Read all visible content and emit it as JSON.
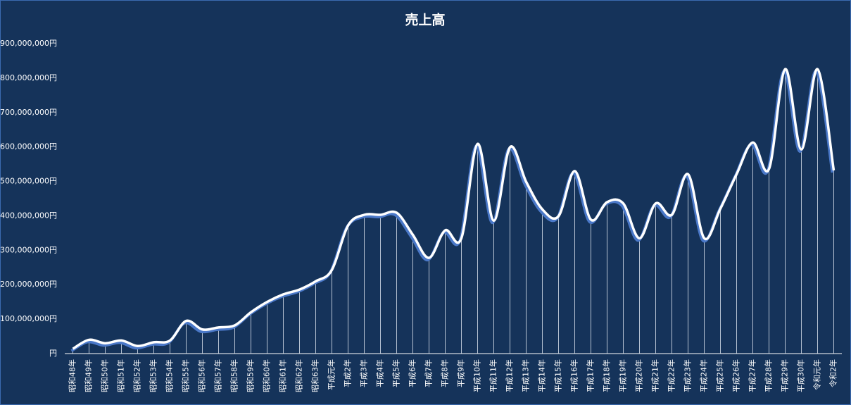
{
  "chart_data": {
    "type": "line",
    "title": "売上高",
    "categories": [
      "昭和48年",
      "昭和49年",
      "昭和50年",
      "昭和51年",
      "昭和52年",
      "昭和53年",
      "昭和54年",
      "昭和55年",
      "昭和56年",
      "昭和57年",
      "昭和58年",
      "昭和59年",
      "昭和60年",
      "昭和61年",
      "昭和62年",
      "昭和63年",
      "平成元年",
      "平成2年",
      "平成3年",
      "平成4年",
      "平成5年",
      "平成6年",
      "平成7年",
      "平成8年",
      "平成9年",
      "平成10年",
      "平成11年",
      "平成12年",
      "平成13年",
      "平成14年",
      "平成15年",
      "平成16年",
      "平成17年",
      "平成18年",
      "平成19年",
      "平成20年",
      "平成21年",
      "平成22年",
      "平成23年",
      "平成24年",
      "平成25年",
      "平成26年",
      "平成27年",
      "平成28年",
      "平成29年",
      "平成30年",
      "令和元年",
      "令和2年"
    ],
    "series": [
      {
        "name": "売上高",
        "color": "#ffffff",
        "values": [
          14000000,
          40000000,
          30000000,
          38000000,
          22000000,
          33000000,
          38000000,
          95000000,
          70000000,
          76000000,
          82000000,
          120000000,
          150000000,
          172000000,
          186000000,
          210000000,
          243000000,
          372000000,
          403000000,
          403000000,
          409000000,
          345000000,
          278000000,
          358000000,
          335000000,
          609000000,
          386000000,
          599000000,
          499000000,
          419000000,
          399000000,
          530000000,
          389000000,
          440000000,
          436000000,
          335000000,
          436000000,
          403000000,
          521000000,
          335000000,
          421000000,
          521000000,
          613000000,
          536000000,
          826000000,
          593000000,
          826000000,
          532000000
        ]
      }
    ],
    "ylim": [
      0,
      900000000
    ],
    "yticks": [
      {
        "value": 0,
        "label": "円"
      },
      {
        "value": 100000000,
        "label": "100,000,000円"
      },
      {
        "value": 200000000,
        "label": "200,000,000円"
      },
      {
        "value": 300000000,
        "label": "300,000,000円"
      },
      {
        "value": 400000000,
        "label": "400,000,000円"
      },
      {
        "value": 500000000,
        "label": "500,000,000円"
      },
      {
        "value": 600000000,
        "label": "600,000,000円"
      },
      {
        "value": 700000000,
        "label": "700,000,000円"
      },
      {
        "value": 800000000,
        "label": "800,000,000円"
      },
      {
        "value": 900000000,
        "label": "900,000,000円"
      }
    ],
    "smooth": true,
    "drop_lines": true,
    "grid": false
  }
}
